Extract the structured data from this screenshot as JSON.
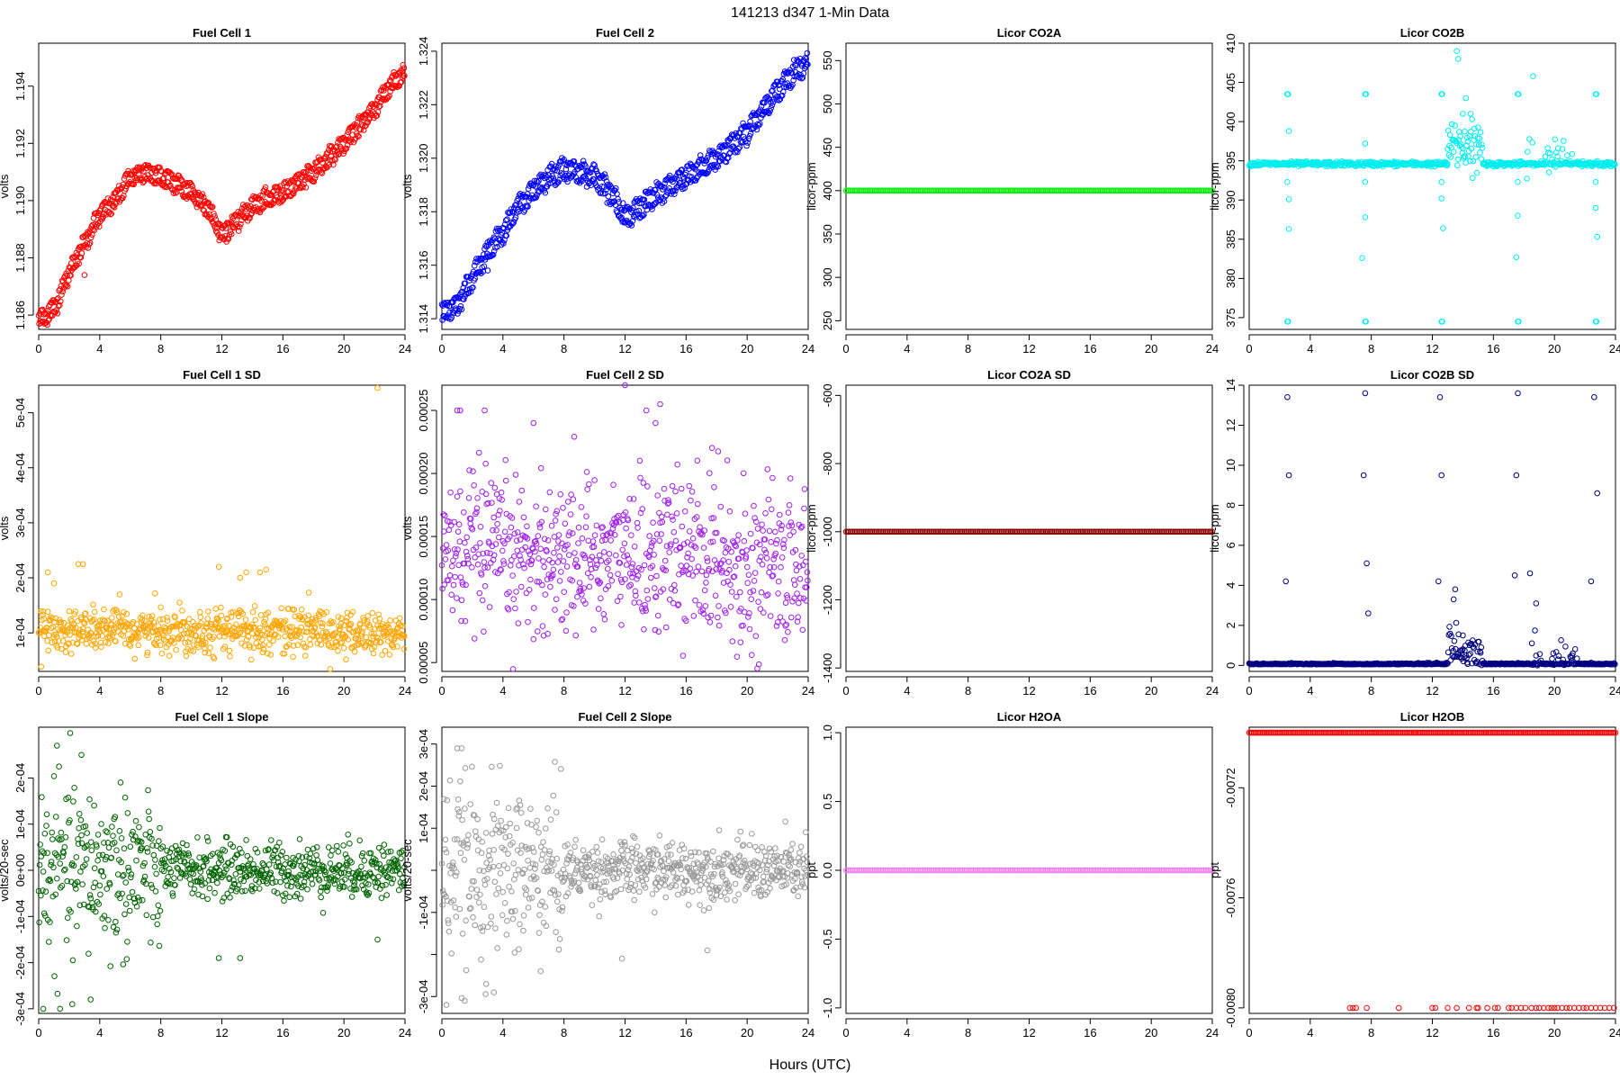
{
  "figure": {
    "title": "141213    d347    1-Min Data",
    "xlabel": "Hours (UTC)"
  },
  "chart_data": [
    {
      "type": "scatter",
      "title": "Fuel Cell 1",
      "ylabel": "volts",
      "color": "#ff0000",
      "xlim": [
        0,
        24
      ],
      "ylim": [
        1.1855,
        1.1955
      ],
      "xticks": [
        0,
        4,
        8,
        12,
        16,
        20,
        24
      ],
      "yticks": [
        1.186,
        1.188,
        1.19,
        1.192,
        1.194
      ],
      "ytick_labels": [
        "1.186",
        "1.188",
        "1.190",
        "1.192",
        "1.194"
      ],
      "gen": {
        "kind": "bands",
        "knots": [
          [
            0,
            1.1858
          ],
          [
            1,
            1.1862
          ],
          [
            2,
            1.1875
          ],
          [
            3,
            1.1885
          ],
          [
            4,
            1.1895
          ],
          [
            5,
            1.19
          ],
          [
            6,
            1.1908
          ],
          [
            7,
            1.191
          ],
          [
            8,
            1.1908
          ],
          [
            9,
            1.1906
          ],
          [
            10,
            1.1903
          ],
          [
            11,
            1.1898
          ],
          [
            12,
            1.1888
          ],
          [
            13,
            1.1893
          ],
          [
            14,
            1.1898
          ],
          [
            16,
            1.1903
          ],
          [
            18,
            1.191
          ],
          [
            20,
            1.192
          ],
          [
            22,
            1.1932
          ],
          [
            23,
            1.194
          ],
          [
            24,
            1.1945
          ]
        ],
        "offset": 0.0004,
        "noise": 0.00015
      }
    },
    {
      "type": "scatter",
      "title": "Fuel Cell 2",
      "ylabel": "volts",
      "color": "#0000ff",
      "xlim": [
        0,
        24
      ],
      "ylim": [
        1.3136,
        1.3243
      ],
      "xticks": [
        0,
        4,
        8,
        12,
        16,
        20,
        24
      ],
      "yticks": [
        1.314,
        1.316,
        1.318,
        1.32,
        1.322,
        1.324
      ],
      "ytick_labels": [
        "1.314",
        "1.316",
        "1.318",
        "1.320",
        "1.322",
        "1.324"
      ],
      "gen": {
        "kind": "bands",
        "knots": [
          [
            0,
            1.3142
          ],
          [
            1,
            1.3145
          ],
          [
            2,
            1.3155
          ],
          [
            3,
            1.3165
          ],
          [
            4,
            1.3172
          ],
          [
            5,
            1.3182
          ],
          [
            6,
            1.3188
          ],
          [
            7,
            1.3193
          ],
          [
            8,
            1.3196
          ],
          [
            9,
            1.3195
          ],
          [
            10,
            1.3193
          ],
          [
            11,
            1.3188
          ],
          [
            12,
            1.3177
          ],
          [
            13,
            1.3182
          ],
          [
            14,
            1.3186
          ],
          [
            16,
            1.3193
          ],
          [
            18,
            1.32
          ],
          [
            20,
            1.321
          ],
          [
            22,
            1.3225
          ],
          [
            23,
            1.3232
          ],
          [
            24,
            1.3236
          ]
        ],
        "offset": 0.0005,
        "noise": 0.00018
      }
    },
    {
      "type": "scatter",
      "title": "Licor CO2A",
      "ylabel": "licor-ppm",
      "color": "#00ee00",
      "xlim": [
        0,
        24
      ],
      "ylim": [
        240,
        570
      ],
      "xticks": [
        0,
        4,
        8,
        12,
        16,
        20,
        24
      ],
      "yticks": [
        250,
        300,
        350,
        400,
        450,
        500,
        550
      ],
      "ytick_labels": [
        "250",
        "300",
        "350",
        "400",
        "450",
        "500",
        "550"
      ],
      "gen": {
        "kind": "constant",
        "value": 400
      }
    },
    {
      "type": "scatter",
      "title": "Licor CO2B",
      "ylabel": "licor-ppm",
      "color": "#00eeee",
      "xlim": [
        0,
        24
      ],
      "ylim": [
        373.5,
        410
      ],
      "xticks": [
        0,
        4,
        8,
        12,
        16,
        20,
        24
      ],
      "yticks": [
        375,
        380,
        385,
        390,
        395,
        400,
        405,
        410
      ],
      "ytick_labels": [
        "375",
        "380",
        "385",
        "390",
        "395",
        "400",
        "405",
        "410"
      ],
      "gen": {
        "kind": "co2b"
      }
    },
    {
      "type": "scatter",
      "title": "Fuel Cell 1 SD",
      "ylabel": "volts",
      "color": "#ffa500",
      "xlim": [
        0,
        24
      ],
      "ylim": [
        3e-05,
        0.00055
      ],
      "xticks": [
        0,
        4,
        8,
        12,
        16,
        20,
        24
      ],
      "yticks": [
        0.0001,
        0.0002,
        0.0003,
        0.0004,
        0.0005
      ],
      "ytick_labels": [
        "1e-04",
        "2e-04",
        "3e-04",
        "4e-04",
        "5e-04"
      ],
      "gen": {
        "kind": "noise",
        "center": 0.000105,
        "spread": 2e-05,
        "outliers": [
          [
            0.6,
            0.00021
          ],
          [
            1.0,
            0.00019
          ],
          [
            2.6,
            0.000225
          ],
          [
            2.9,
            0.000225
          ],
          [
            11.8,
            0.00022
          ],
          [
            13.2,
            0.0002
          ],
          [
            13.6,
            0.00021
          ],
          [
            14.5,
            0.00021
          ],
          [
            14.9,
            0.000215
          ],
          [
            22.2,
            0.000545
          ]
        ]
      }
    },
    {
      "type": "scatter",
      "title": "Fuel Cell 2 SD",
      "ylabel": "volts",
      "color": "#a020f0",
      "xlim": [
        0,
        24
      ],
      "ylim": [
        4.3e-05,
        0.00027
      ],
      "xticks": [
        0,
        4,
        8,
        12,
        16,
        20,
        24
      ],
      "yticks": [
        5e-05,
        0.0001,
        0.00015,
        0.0002,
        0.00025
      ],
      "ytick_labels": [
        "0.00005",
        "0.00010",
        "0.00015",
        "0.00020",
        "0.00025"
      ],
      "gen": {
        "kind": "noise",
        "center": 0.000135,
        "spread": 3e-05,
        "outliers": [
          [
            1.0,
            0.00025
          ],
          [
            1.2,
            0.00025
          ],
          [
            2.8,
            0.00025
          ],
          [
            6.0,
            0.00024
          ],
          [
            12.0,
            0.00027
          ],
          [
            13.4,
            0.00025
          ],
          [
            14.3,
            0.000255
          ],
          [
            14.0,
            0.00024
          ]
        ]
      }
    },
    {
      "type": "scatter",
      "title": "Licor CO2A SD",
      "ylabel": "licor-ppm",
      "color": "#8b0000",
      "xlim": [
        0,
        24
      ],
      "ylim": [
        -1410,
        -570
      ],
      "xticks": [
        0,
        4,
        8,
        12,
        16,
        20,
        24
      ],
      "yticks": [
        -1400,
        -1200,
        -1000,
        -800,
        -600
      ],
      "ytick_labels": [
        "-1400",
        "-1200",
        "-1000",
        "-800",
        "-600"
      ],
      "gen": {
        "kind": "constant",
        "value": -1000
      }
    },
    {
      "type": "scatter",
      "title": "Licor CO2B SD",
      "ylabel": "licor-ppm",
      "color": "#000080",
      "xlim": [
        0,
        24
      ],
      "ylim": [
        -0.3,
        14
      ],
      "xticks": [
        0,
        4,
        8,
        12,
        16,
        20,
        24
      ],
      "yticks": [
        0,
        2,
        4,
        6,
        8,
        10,
        12,
        14
      ],
      "ytick_labels": [
        "0",
        "2",
        "4",
        "6",
        "8",
        "10",
        "12",
        "14"
      ],
      "gen": {
        "kind": "co2bsd"
      }
    },
    {
      "type": "scatter",
      "title": "Fuel Cell 1 Slope",
      "ylabel": "volts/20-sec",
      "color": "#006400",
      "xlim": [
        0,
        24
      ],
      "ylim": [
        -0.00031,
        0.00031
      ],
      "xticks": [
        0,
        4,
        8,
        12,
        16,
        20,
        24
      ],
      "yticks": [
        -0.0003,
        -0.0002,
        -0.0001,
        0,
        0.0001,
        0.0002
      ],
      "ytick_labels": [
        "-3e-04",
        "-2e-04",
        "-1e-04",
        "0e+00",
        "1e-04",
        "2e-04"
      ],
      "gen": {
        "kind": "slope",
        "early": 9e-05,
        "late": 3e-05,
        "outliers": [
          [
            1.2,
            0.00027
          ],
          [
            2.8,
            0.00025
          ],
          [
            0.3,
            -0.0003
          ],
          [
            1.4,
            -0.0003
          ],
          [
            2.2,
            -0.00029
          ],
          [
            3.4,
            -0.00028
          ],
          [
            11.8,
            -0.00019
          ],
          [
            13.2,
            -0.00019
          ],
          [
            22.2,
            -0.00015
          ]
        ]
      }
    },
    {
      "type": "scatter",
      "title": "Fuel Cell 2 Slope",
      "ylabel": "volts/20-sec",
      "color": "#999999",
      "xlim": [
        0,
        24
      ],
      "ylim": [
        -0.00034,
        0.00034
      ],
      "xticks": [
        0,
        4,
        8,
        12,
        16,
        20,
        24
      ],
      "yticks": [
        -0.0003,
        -0.0002,
        -0.0001,
        0,
        0.0001,
        0.0002,
        0.0003
      ],
      "ytick_labels": [
        "-3e-04",
        "",
        "-1e-04",
        "",
        "1e-04",
        "2e-04",
        "3e-04"
      ],
      "gen": {
        "kind": "slope",
        "early": 0.0001,
        "late": 3.5e-05,
        "outliers": [
          [
            1.0,
            0.00029
          ],
          [
            1.3,
            0.00029
          ],
          [
            0.3,
            -0.00032
          ],
          [
            1.5,
            -0.00031
          ],
          [
            2.9,
            -0.00027
          ],
          [
            3.4,
            -0.00029
          ],
          [
            11.8,
            -0.00021
          ],
          [
            17.4,
            -0.00019
          ]
        ]
      }
    },
    {
      "type": "scatter",
      "title": "Licor H2OA",
      "ylabel": "ppt",
      "color": "#ee82ee",
      "xlim": [
        0,
        24
      ],
      "ylim": [
        -1.04,
        1.04
      ],
      "xticks": [
        0,
        4,
        8,
        12,
        16,
        20,
        24
      ],
      "yticks": [
        -1,
        -0.5,
        0,
        0.5,
        1
      ],
      "ytick_labels": [
        "-1.0",
        "-0.5",
        "0.0",
        "0.5",
        "1.0"
      ],
      "gen": {
        "kind": "constant",
        "value": 0
      }
    },
    {
      "type": "scatter",
      "title": "Licor H2OB",
      "ylabel": "ppt",
      "color": "#ff0000",
      "xlim": [
        0,
        24
      ],
      "ylim": [
        -0.00802,
        -0.00698
      ],
      "xticks": [
        0,
        4,
        8,
        12,
        16,
        20,
        24
      ],
      "yticks": [
        -0.0072,
        -0.0076,
        -0.008
      ],
      "ytick_labels": [
        "-0.0072",
        "-0.0076",
        "-0.0080"
      ],
      "gen": {
        "kind": "h2ob",
        "top": -0.007,
        "bottom": -0.008
      }
    }
  ]
}
